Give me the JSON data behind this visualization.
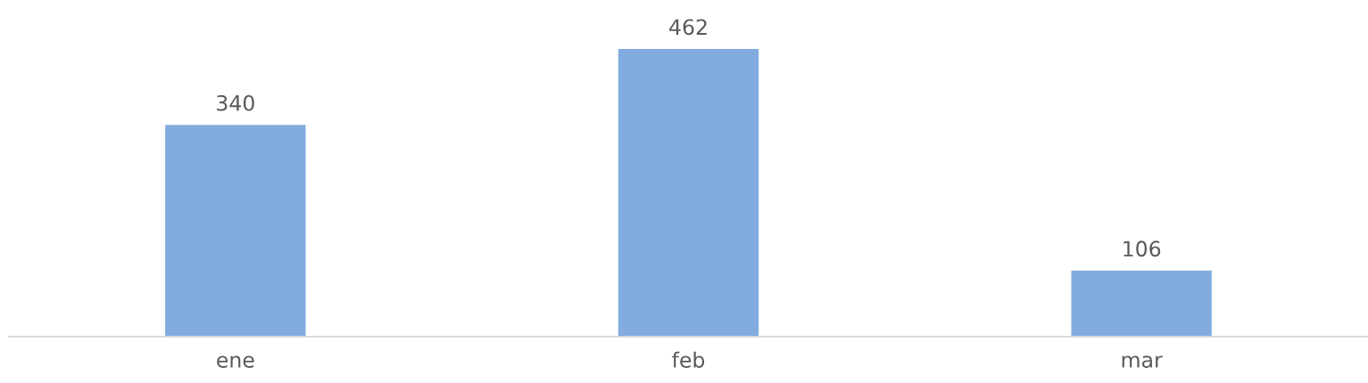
{
  "chart_data": {
    "type": "bar",
    "categories": [
      "ene",
      "feb",
      "mar"
    ],
    "values": [
      340,
      462,
      106
    ],
    "color": "#82abdf",
    "data_labels": true,
    "grid": false,
    "legend": false
  }
}
